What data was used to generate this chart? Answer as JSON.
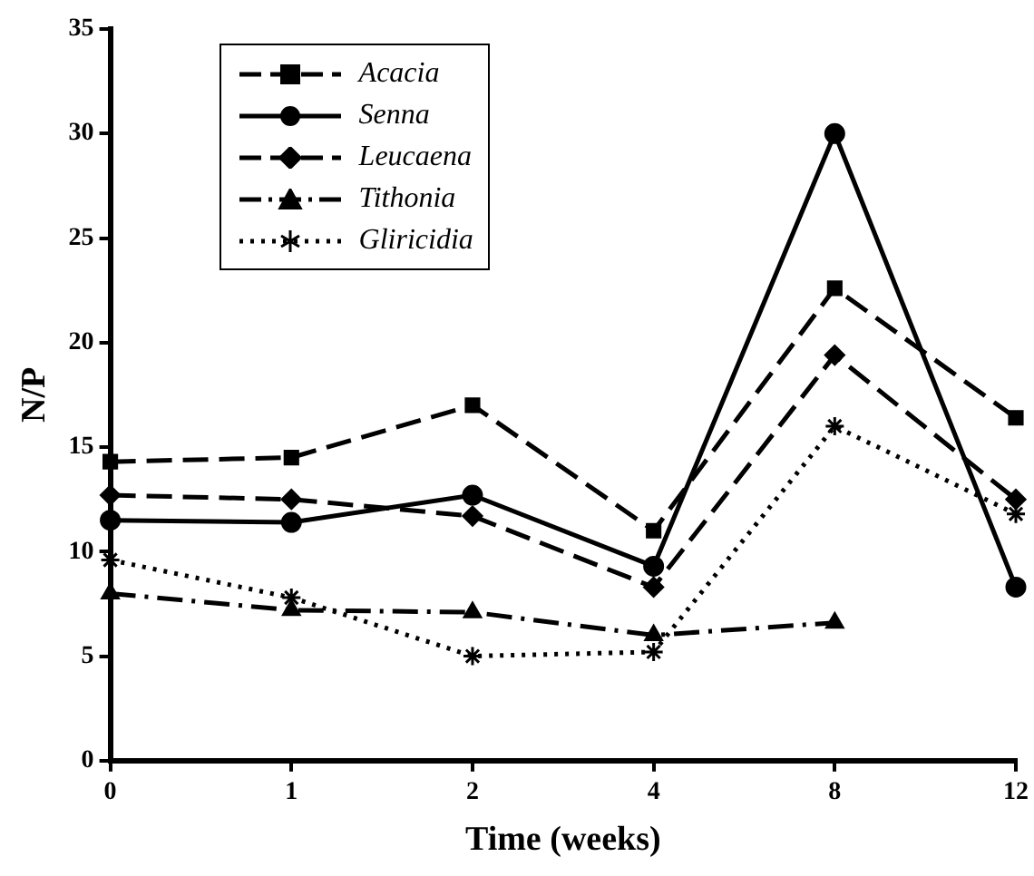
{
  "chart_data": {
    "type": "line",
    "xlabel": "Time (weeks)",
    "ylabel": "N/P",
    "categories": [
      "0",
      "1",
      "2",
      "4",
      "8",
      "12"
    ],
    "ylim": [
      0,
      35
    ],
    "yticks": [
      0,
      5,
      10,
      15,
      20,
      25,
      30,
      35
    ],
    "grid": false,
    "legend": "top left",
    "series": [
      {
        "name": "Acacia",
        "color": "#000000",
        "marker": "square",
        "line_style": "dashed",
        "values": [
          14.3,
          14.5,
          17.0,
          11.0,
          22.6,
          16.4
        ]
      },
      {
        "name": "Senna",
        "color": "#000000",
        "marker": "circle",
        "line_style": "solid",
        "values": [
          11.5,
          11.4,
          12.7,
          9.3,
          30.0,
          8.3
        ]
      },
      {
        "name": "Leucaena",
        "color": "#000000",
        "marker": "diamond",
        "line_style": "dashed",
        "values": [
          12.7,
          12.5,
          11.7,
          8.3,
          19.4,
          12.5
        ]
      },
      {
        "name": "Tithonia",
        "color": "#000000",
        "marker": "triangle",
        "line_style": "dashdot",
        "values": [
          8.0,
          7.2,
          7.1,
          6.0,
          6.6,
          null
        ]
      },
      {
        "name": "Gliricidia",
        "color": "#000000",
        "marker": "cross",
        "line_style": "dotted",
        "values": [
          9.6,
          7.8,
          5.0,
          5.2,
          16.0,
          11.8
        ]
      }
    ]
  }
}
